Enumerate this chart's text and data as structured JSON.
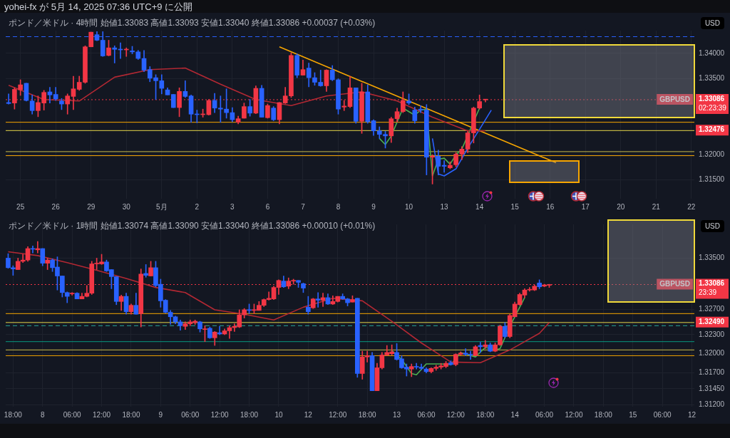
{
  "chart_data": [
    {
      "type": "candlestick",
      "title": "ポンド／米ドル · 4時間  始値1.33083 高値1.33093 安値1.33040 終値1.33086 +0.00037 (+0.03%)",
      "ylabel": "USD",
      "grid": true,
      "annotations": [
        "yohei-fx が 5月 14, 2025 07:36 UTC+9 に公開",
        {
          "text": "GBPUSD",
          "y": 1.33086
        }
      ],
      "categories": [
        null,
        null,
        "25",
        null,
        null,
        null,
        null,
        null,
        "26",
        null,
        null,
        null,
        null,
        null,
        "29",
        null,
        null,
        null,
        null,
        null,
        "30",
        null,
        null,
        null,
        null,
        null,
        "5月",
        null,
        null,
        null,
        null,
        null,
        "2",
        null,
        null,
        null,
        null,
        null,
        "3",
        null,
        null,
        null,
        null,
        null,
        "6",
        null,
        null,
        null,
        null,
        null,
        "7",
        null,
        null,
        null,
        null,
        null,
        "8",
        null,
        null,
        null,
        null,
        null,
        "9",
        null,
        null,
        null,
        null,
        null,
        "10",
        null,
        null,
        null,
        null,
        null,
        "13",
        null,
        null,
        null,
        null,
        null,
        "14",
        null,
        null,
        null,
        null,
        null,
        "15",
        null,
        null,
        null,
        null,
        null,
        "16",
        null,
        null,
        null,
        null,
        null,
        "17",
        null,
        null,
        null,
        null,
        null,
        "20",
        null,
        null,
        null,
        null,
        null,
        "21",
        null,
        null,
        null,
        null,
        null,
        "22"
      ],
      "ylim": [
        1.3113,
        1.3445
      ],
      "yticks": [
        {
          "value": 1.315,
          "label": "1.31500"
        },
        {
          "value": 1.32,
          "label": "1.32000"
        },
        {
          "value": 1.335,
          "label": "1.33500"
        },
        {
          "value": 1.34,
          "label": "1.34000"
        }
      ],
      "ohlc": [
        [
          1.3303,
          1.332,
          1.33,
          1.3301
        ],
        [
          1.3302,
          1.3332,
          1.329,
          1.3329
        ],
        [
          1.3328,
          1.3348,
          1.3317,
          1.3338
        ],
        [
          1.3341,
          1.3341,
          1.3306,
          1.3307
        ],
        [
          1.3306,
          1.3318,
          1.328,
          1.3287
        ],
        [
          1.3287,
          1.3316,
          1.3275,
          1.3303
        ],
        [
          1.3302,
          1.3327,
          1.3288,
          1.3323
        ],
        [
          1.3324,
          1.3333,
          1.3302,
          1.3318
        ],
        [
          1.3319,
          1.3333,
          1.3307,
          1.331
        ],
        [
          1.3306,
          1.3311,
          1.3289,
          1.33
        ],
        [
          1.33,
          1.332,
          1.328,
          1.3316
        ],
        [
          1.3315,
          1.3355,
          1.3289,
          1.333
        ],
        [
          1.3329,
          1.3355,
          1.3327,
          1.3343
        ],
        [
          1.3343,
          1.3415,
          1.3341,
          1.3413
        ],
        [
          1.3413,
          1.3442,
          1.3413,
          1.3442
        ],
        [
          1.3437,
          1.3443,
          1.3425,
          1.3426
        ],
        [
          1.3426,
          1.3443,
          1.3394,
          1.3395
        ],
        [
          1.3396,
          1.3426,
          1.3395,
          1.3411
        ],
        [
          1.3411,
          1.3415,
          1.3381,
          1.3408
        ],
        [
          1.3408,
          1.3421,
          1.339,
          1.3407
        ],
        [
          1.3407,
          1.3411,
          1.3394,
          1.3408
        ],
        [
          1.3405,
          1.3414,
          1.3399,
          1.3403
        ],
        [
          1.3403,
          1.3406,
          1.3388,
          1.339
        ],
        [
          1.339,
          1.3406,
          1.3364,
          1.3367
        ],
        [
          1.3368,
          1.3374,
          1.3344,
          1.3351
        ],
        [
          1.3352,
          1.3358,
          1.3309,
          1.3346
        ],
        [
          1.3346,
          1.3358,
          1.332,
          1.3331
        ],
        [
          1.3328,
          1.3332,
          1.3318,
          1.3318
        ],
        [
          1.3319,
          1.3319,
          1.3293,
          1.3293
        ],
        [
          1.3293,
          1.3332,
          1.3275,
          1.3325
        ],
        [
          1.3325,
          1.3346,
          1.3313,
          1.3315
        ],
        [
          1.3316,
          1.3318,
          1.3264,
          1.328
        ],
        [
          1.328,
          1.3288,
          1.3263,
          1.3279
        ],
        [
          1.3279,
          1.329,
          1.3274,
          1.328
        ],
        [
          1.3279,
          1.3309,
          1.3278,
          1.3307
        ],
        [
          1.3307,
          1.3321,
          1.3283,
          1.3292
        ],
        [
          1.3292,
          1.3316,
          1.3264,
          1.329
        ],
        [
          1.329,
          1.333,
          1.3272,
          1.3283
        ],
        [
          1.3283,
          1.3293,
          1.3265,
          1.3269
        ],
        [
          1.3264,
          1.3276,
          1.3261,
          1.3271
        ],
        [
          1.3272,
          1.3302,
          1.3272,
          1.3295
        ],
        [
          1.3295,
          1.3309,
          1.3276,
          1.3282
        ],
        [
          1.3282,
          1.3336,
          1.3281,
          1.3331
        ],
        [
          1.3331,
          1.3337,
          1.3274,
          1.3274
        ],
        [
          1.3273,
          1.33,
          1.3272,
          1.3297
        ],
        [
          1.3292,
          1.3295,
          1.3267,
          1.3269
        ],
        [
          1.3269,
          1.3303,
          1.3261,
          1.3303
        ],
        [
          1.3302,
          1.3333,
          1.3301,
          1.3316
        ],
        [
          1.3316,
          1.3401,
          1.3313,
          1.3396
        ],
        [
          1.3396,
          1.3399,
          1.3352,
          1.3357
        ],
        [
          1.3357,
          1.3387,
          1.3357,
          1.3368
        ],
        [
          1.3371,
          1.3381,
          1.3334,
          1.3352
        ],
        [
          1.3352,
          1.3362,
          1.3337,
          1.3343
        ],
        [
          1.3343,
          1.3367,
          1.3335,
          1.3336
        ],
        [
          1.3336,
          1.3368,
          1.3325,
          1.3367
        ],
        [
          1.3367,
          1.3376,
          1.3346,
          1.3348
        ],
        [
          1.3348,
          1.335,
          1.328,
          1.329
        ],
        [
          1.3294,
          1.3307,
          1.3287,
          1.3296
        ],
        [
          1.3295,
          1.3355,
          1.3293,
          1.3332
        ],
        [
          1.3332,
          1.3332,
          1.3262,
          1.3266
        ],
        [
          1.3266,
          1.3341,
          1.3242,
          1.3324
        ],
        [
          1.3324,
          1.3338,
          1.3262,
          1.3265
        ],
        [
          1.3267,
          1.3269,
          1.3238,
          1.3247
        ],
        [
          1.3247,
          1.3255,
          1.3232,
          1.324
        ],
        [
          1.324,
          1.3246,
          1.3213,
          1.3237
        ],
        [
          1.3237,
          1.3274,
          1.3224,
          1.3271
        ],
        [
          1.3271,
          1.3292,
          1.3264,
          1.3285
        ],
        [
          1.3285,
          1.3324,
          1.3283,
          1.3307
        ],
        [
          1.3306,
          1.332,
          1.3299,
          1.3302
        ],
        [
          1.3288,
          1.3294,
          1.3262,
          1.3267
        ],
        [
          1.329,
          1.3297,
          1.3283,
          1.3288
        ],
        [
          1.3288,
          1.3299,
          1.316,
          1.3195
        ],
        [
          1.3195,
          1.32,
          1.3142,
          1.3197
        ],
        [
          1.3197,
          1.3209,
          1.316,
          1.3177
        ],
        [
          1.3179,
          1.3188,
          1.3165,
          1.3177
        ],
        [
          1.3174,
          1.3186,
          1.3172,
          1.3179
        ],
        [
          1.318,
          1.3204,
          1.3176,
          1.3201
        ],
        [
          1.3201,
          1.3216,
          1.319,
          1.3211
        ],
        [
          1.3211,
          1.3246,
          1.3204,
          1.3243
        ],
        [
          1.3243,
          1.3294,
          1.3223,
          1.3292
        ],
        [
          1.3292,
          1.3318,
          1.329,
          1.3305
        ],
        [
          1.33083,
          1.33093,
          1.3304,
          1.33086
        ],
        null,
        null,
        null,
        null,
        null,
        null,
        null,
        null,
        null,
        null,
        null,
        null,
        null,
        null,
        null,
        null,
        null,
        null,
        null,
        null,
        null,
        null,
        null,
        null,
        null,
        null,
        null,
        null,
        null,
        null,
        null,
        null,
        null,
        null,
        null
      ],
      "series": [
        {
          "type": "line",
          "color": "#b22833",
          "values": [
            1.3337,
            null,
            null,
            null,
            null,
            null,
            1.3309,
            null,
            null,
            null,
            null,
            null,
            1.3306,
            null,
            null,
            null,
            null,
            null,
            1.3353,
            null,
            null,
            null,
            null,
            null,
            1.3368,
            null,
            null,
            null,
            null,
            null,
            1.3371,
            null,
            null,
            null,
            null,
            null,
            1.3339,
            null,
            null,
            null,
            null,
            null,
            1.3309,
            null,
            null,
            null,
            null,
            null,
            1.3297,
            null,
            null,
            null,
            null,
            null,
            1.3316,
            null,
            null,
            null,
            null,
            null,
            1.3324,
            null,
            null,
            null,
            null,
            null,
            1.3306,
            null,
            null,
            null,
            null,
            null,
            1.3274,
            null,
            null,
            null,
            null,
            null,
            1.3247,
            null,
            null,
            1.3247,
            null,
            null,
            null,
            null,
            null,
            null,
            null,
            null,
            null,
            null,
            null,
            null,
            null,
            null,
            null,
            null,
            null,
            null,
            null,
            null,
            null,
            null,
            null,
            null,
            null,
            null,
            null,
            null,
            null,
            null,
            null,
            null,
            null,
            null,
            null
          ]
        },
        {
          "type": "line",
          "color": "#4caf50",
          "values": [
            null,
            null,
            null,
            null,
            null,
            null,
            null,
            null,
            null,
            null,
            null,
            null,
            null,
            null,
            null,
            null,
            null,
            null,
            null,
            null,
            null,
            null,
            null,
            null,
            null,
            null,
            null,
            null,
            null,
            null,
            null,
            null,
            null,
            null,
            null,
            null,
            null,
            null,
            null,
            null,
            null,
            null,
            null,
            null,
            null,
            null,
            null,
            null,
            null,
            null,
            null,
            null,
            null,
            null,
            null,
            null,
            null,
            null,
            null,
            null,
            null,
            null,
            null,
            1.3232,
            1.322,
            1.3237,
            null,
            1.3292,
            null,
            1.3278,
            1.3288,
            1.329,
            1.3158,
            1.3191,
            1.3193,
            1.3181,
            1.32,
            1.3211,
            null,
            null,
            1.3292,
            null,
            null,
            null,
            null,
            null,
            null,
            null,
            null,
            null,
            null,
            null,
            null,
            null,
            null,
            null,
            null,
            null,
            null,
            null,
            null,
            null,
            null,
            null,
            null,
            null,
            null,
            null,
            null,
            null,
            null,
            null,
            null,
            null,
            null,
            null,
            null
          ]
        },
        {
          "type": "line",
          "color": "#2962ff",
          "values": [
            null,
            null,
            null,
            null,
            null,
            null,
            null,
            null,
            null,
            null,
            null,
            null,
            null,
            null,
            null,
            null,
            null,
            null,
            null,
            null,
            null,
            null,
            null,
            null,
            null,
            null,
            null,
            null,
            null,
            null,
            null,
            null,
            null,
            null,
            null,
            null,
            null,
            null,
            null,
            null,
            null,
            null,
            null,
            null,
            null,
            null,
            null,
            null,
            null,
            null,
            null,
            null,
            null,
            null,
            null,
            null,
            null,
            null,
            null,
            null,
            null,
            null,
            null,
            null,
            null,
            null,
            null,
            null,
            null,
            null,
            null,
            null,
            1.3232,
            1.3162,
            1.3158,
            null,
            1.3172,
            null,
            1.3213,
            null,
            1.325,
            null,
            1.3288,
            null,
            null,
            null,
            null,
            null,
            null,
            null,
            null,
            null,
            null,
            null,
            null,
            null,
            null,
            null,
            null,
            null,
            null,
            null,
            null,
            null,
            null,
            null,
            null,
            null,
            null,
            null,
            null,
            null,
            null,
            null,
            null,
            null,
            null
          ]
        },
        {
          "type": "line",
          "color": "#f7a600",
          "values": [
            null,
            null,
            null,
            null,
            null,
            null,
            null,
            null,
            null,
            null,
            null,
            null,
            null,
            null,
            null,
            null,
            null,
            null,
            null,
            null,
            null,
            null,
            null,
            null,
            null,
            null,
            null,
            null,
            null,
            null,
            null,
            null,
            null,
            null,
            null,
            null,
            null,
            null,
            null,
            null,
            null,
            null,
            null,
            null,
            null,
            null,
            1.3413,
            null,
            null,
            null,
            null,
            null,
            null,
            null,
            null,
            null,
            null,
            null,
            null,
            null,
            null,
            null,
            null,
            null,
            null,
            null,
            null,
            null,
            null,
            null,
            null,
            null,
            null,
            null,
            null,
            null,
            null,
            null,
            null,
            null,
            null,
            null,
            null,
            null,
            null,
            null,
            null,
            null,
            null,
            null,
            null,
            null,
            null,
            1.3184,
            null,
            null,
            null,
            null,
            null,
            null,
            null,
            null,
            null,
            null,
            null,
            null,
            null,
            null,
            null,
            null,
            null,
            null,
            null,
            null,
            null,
            null,
            null
          ]
        }
      ],
      "ref_lines": [
        {
          "axis": "y",
          "value": 1.3433,
          "color": "#2962ff",
          "line_style": "dashed"
        },
        {
          "axis": "y",
          "value": 1.33086,
          "color": "#f23645",
          "line_style": "dotted",
          "label": "1.33086\n02:23:39"
        },
        {
          "axis": "y",
          "value": 1.3264,
          "color": "#f7a600"
        },
        {
          "axis": "y",
          "value": 1.32476,
          "color": "#e5d44a",
          "label": "1.32476"
        },
        {
          "axis": "y",
          "value": 1.3206,
          "color": "#c8b94a"
        },
        {
          "axis": "y",
          "value": 1.3198,
          "color": "#f7a600"
        }
      ]
    },
    {
      "type": "candlestick",
      "title": "ポンド／米ドル · 1時間  始値1.33074 高値1.33090 安値1.33040 終値1.33086 +0.00010 (+0.01%)",
      "ylabel": "USD",
      "grid": true,
      "annotations": [
        {
          "text": "GBPUSD",
          "y": 1.33086
        }
      ],
      "categories": [
        null,
        "18:00",
        null,
        null,
        null,
        null,
        null,
        "8",
        null,
        null,
        null,
        null,
        null,
        "06:00",
        null,
        null,
        null,
        null,
        null,
        "12:00",
        null,
        null,
        null,
        null,
        null,
        "18:00",
        null,
        null,
        null,
        null,
        null,
        "9",
        null,
        null,
        null,
        null,
        null,
        "06:00",
        null,
        null,
        null,
        null,
        null,
        "12:00",
        null,
        null,
        null,
        null,
        null,
        "18:00",
        null,
        null,
        null,
        null,
        null,
        "10",
        null,
        null,
        null,
        null,
        null,
        "12",
        null,
        null,
        null,
        null,
        null,
        "12:00",
        null,
        null,
        null,
        null,
        null,
        "18:00",
        null,
        null,
        null,
        null,
        null,
        "13",
        null,
        null,
        null,
        null,
        null,
        "06:00",
        null,
        null,
        null,
        null,
        null,
        "12:00",
        null,
        null,
        null,
        null,
        null,
        "18:00",
        null,
        null,
        null,
        null,
        null,
        "14",
        null,
        null,
        null,
        null,
        null,
        "06:00",
        null,
        null,
        null,
        null,
        null,
        "12:00",
        null,
        null,
        null,
        null,
        null,
        "18:00",
        null,
        null,
        null,
        null,
        null,
        "15",
        null,
        null,
        null,
        null,
        null,
        "06:00",
        null,
        null,
        null,
        null,
        null,
        "12"
      ],
      "ylim": [
        1.3117,
        1.3403
      ],
      "yticks": [
        {
          "value": 1.312,
          "label": "1.31200"
        },
        {
          "value": 1.3145,
          "label": "1.31450"
        },
        {
          "value": 1.317,
          "label": "1.31700"
        },
        {
          "value": 1.32,
          "label": "1.32000"
        },
        {
          "value": 1.323,
          "label": "1.32300"
        },
        {
          "value": 1.327,
          "label": "1.32700"
        },
        {
          "value": 1.335,
          "label": "1.33500"
        }
      ],
      "ohlc": [
        [
          1.335,
          1.3357,
          1.3334,
          1.3335
        ],
        [
          1.3335,
          1.3338,
          1.3323,
          1.3333
        ],
        [
          1.3332,
          1.335,
          1.3332,
          1.3345
        ],
        [
          1.3345,
          1.3356,
          1.3343,
          1.3347
        ],
        [
          1.3347,
          1.3368,
          1.3345,
          1.3365
        ],
        [
          1.3365,
          1.3369,
          1.3358,
          1.3364
        ],
        [
          1.3363,
          1.3376,
          1.3358,
          1.3365
        ],
        [
          1.3365,
          1.3365,
          1.3338,
          1.3342
        ],
        [
          1.3342,
          1.335,
          1.3332,
          1.3347
        ],
        [
          1.3347,
          1.3349,
          1.3329,
          1.3335
        ],
        [
          1.3336,
          1.3352,
          1.33,
          1.3322
        ],
        [
          1.3322,
          1.3322,
          1.3289,
          1.3296
        ],
        [
          1.3296,
          1.3297,
          1.328,
          1.329
        ],
        [
          1.3294,
          1.3296,
          1.3292,
          1.3295
        ],
        [
          1.3295,
          1.3296,
          1.3286,
          1.3286
        ],
        [
          1.3286,
          1.3295,
          1.3286,
          1.329
        ],
        [
          1.329,
          1.3307,
          1.3289,
          1.3295
        ],
        [
          1.3295,
          1.3345,
          1.3293,
          1.3341
        ],
        [
          1.3341,
          1.335,
          1.3332,
          1.3342
        ],
        [
          1.3341,
          1.3356,
          1.334,
          1.3344
        ],
        [
          1.3344,
          1.3347,
          1.3329,
          1.333
        ],
        [
          1.3332,
          1.3332,
          1.3302,
          1.3321
        ],
        [
          1.3321,
          1.3321,
          1.3277,
          1.3282
        ],
        [
          1.3282,
          1.3292,
          1.3268,
          1.329
        ],
        [
          1.329,
          1.3295,
          1.3262,
          1.3266
        ],
        [
          1.3266,
          1.3278,
          1.3262,
          1.3276
        ],
        [
          1.3276,
          1.3295,
          1.3262,
          1.3262
        ],
        [
          1.3263,
          1.3333,
          1.3242,
          1.3325
        ],
        [
          1.3326,
          1.334,
          1.332,
          1.3323
        ],
        [
          1.3322,
          1.3345,
          1.3322,
          1.3335
        ],
        [
          1.3335,
          1.3345,
          1.3305,
          1.3307
        ],
        [
          1.3309,
          1.3317,
          1.3273,
          1.3283
        ],
        [
          1.3284,
          1.3285,
          1.3264,
          1.3265
        ],
        [
          1.3265,
          1.3268,
          1.3246,
          1.3258
        ],
        [
          1.3258,
          1.3259,
          1.3247,
          1.325
        ],
        [
          1.325,
          1.3253,
          1.3237,
          1.3244
        ],
        [
          1.3243,
          1.325,
          1.3238,
          1.3247
        ],
        [
          1.3247,
          1.3253,
          1.3244,
          1.325
        ],
        [
          1.3249,
          1.3253,
          1.3246,
          1.3251
        ],
        [
          1.325,
          1.3251,
          1.3234,
          1.3239
        ],
        [
          1.3238,
          1.3244,
          1.3219,
          1.3239
        ],
        [
          1.324,
          1.3242,
          1.3224,
          1.3225
        ],
        [
          1.3225,
          1.3235,
          1.3213,
          1.3234
        ],
        [
          1.3233,
          1.3243,
          1.323,
          1.3231
        ],
        [
          1.3231,
          1.3239,
          1.323,
          1.3236
        ],
        [
          1.3236,
          1.3244,
          1.3224,
          1.3241
        ],
        [
          1.3241,
          1.3247,
          1.3235,
          1.3243
        ],
        [
          1.3242,
          1.3269,
          1.3241,
          1.3261
        ],
        [
          1.3261,
          1.3271,
          1.3256,
          1.3269
        ],
        [
          1.3269,
          1.3278,
          1.3263,
          1.3268
        ],
        [
          1.3268,
          1.3278,
          1.3263,
          1.3269
        ],
        [
          1.3268,
          1.3282,
          1.3268,
          1.3276
        ],
        [
          1.3276,
          1.3286,
          1.3274,
          1.3285
        ],
        [
          1.3285,
          1.3297,
          1.3284,
          1.3287
        ],
        [
          1.3286,
          1.3306,
          1.3285,
          1.3304
        ],
        [
          1.3304,
          1.3316,
          1.3293,
          1.3315
        ],
        [
          1.3314,
          1.3322,
          1.3304,
          1.3305
        ],
        [
          1.3306,
          1.3319,
          1.3302,
          1.3314
        ],
        [
          1.3314,
          1.3317,
          1.3309,
          1.3315
        ],
        [
          1.3315,
          1.3315,
          1.3304,
          1.3312
        ],
        [
          1.331,
          1.3311,
          1.3296,
          1.3303
        ],
        [
          1.3273,
          1.329,
          1.3262,
          1.3266
        ],
        [
          1.3272,
          1.3287,
          1.3271,
          1.3286
        ],
        [
          1.3286,
          1.3296,
          1.3273,
          1.3284
        ],
        [
          1.3284,
          1.3295,
          1.3274,
          1.3288
        ],
        [
          1.3288,
          1.3294,
          1.3277,
          1.3278
        ],
        [
          1.3278,
          1.3291,
          1.3277,
          1.3282
        ],
        [
          1.3282,
          1.329,
          1.3281,
          1.329
        ],
        [
          1.329,
          1.3294,
          1.3285,
          1.3286
        ],
        [
          1.3286,
          1.3287,
          1.3275,
          1.328
        ],
        [
          1.3281,
          1.3291,
          1.3281,
          1.3285
        ],
        [
          1.3287,
          1.3287,
          1.3163,
          1.3169
        ],
        [
          1.3169,
          1.3204,
          1.316,
          1.3195
        ],
        [
          1.3195,
          1.3204,
          1.3187,
          1.3197
        ],
        [
          1.3197,
          1.3202,
          1.3142,
          1.3142
        ],
        [
          1.3142,
          1.3185,
          1.3142,
          1.3178
        ],
        [
          1.3178,
          1.3202,
          1.3176,
          1.3198
        ],
        [
          1.3198,
          1.3213,
          1.3197,
          1.3202
        ],
        [
          1.32,
          1.3214,
          1.3198,
          1.3203
        ],
        [
          1.3202,
          1.3216,
          1.319,
          1.3191
        ],
        [
          1.3192,
          1.3197,
          1.3177,
          1.3178
        ],
        [
          1.3179,
          1.3184,
          1.3165,
          1.3176
        ],
        [
          1.3176,
          1.3184,
          1.3164,
          1.318
        ],
        [
          1.318,
          1.3185,
          1.3176,
          1.3179
        ],
        [
          1.3179,
          1.3184,
          1.3175,
          1.3177
        ],
        [
          1.3176,
          1.3178,
          1.317,
          1.3172
        ],
        [
          1.3172,
          1.3178,
          1.317,
          1.3177
        ],
        [
          1.3177,
          1.3182,
          1.3174,
          1.3179
        ],
        [
          1.3179,
          1.3185,
          1.3176,
          1.3181
        ],
        [
          1.318,
          1.3188,
          1.3178,
          1.3185
        ],
        [
          1.3186,
          1.3189,
          1.3182,
          1.3183
        ],
        [
          1.3183,
          1.32,
          1.3181,
          1.3199
        ],
        [
          1.3199,
          1.3203,
          1.3198,
          1.3201
        ],
        [
          1.3201,
          1.3208,
          1.3197,
          1.3199
        ],
        [
          1.3199,
          1.3204,
          1.3191,
          1.3198
        ],
        [
          1.3197,
          1.3213,
          1.3197,
          1.3211
        ],
        [
          1.3213,
          1.3218,
          1.3202,
          1.3211
        ],
        [
          1.3211,
          1.3221,
          1.3208,
          1.3214
        ],
        [
          1.3214,
          1.3217,
          1.3203,
          1.3204
        ],
        [
          1.3204,
          1.3217,
          1.3203,
          1.3214
        ],
        [
          1.3214,
          1.3245,
          1.3213,
          1.3243
        ],
        [
          1.3243,
          1.3249,
          1.3225,
          1.3227
        ],
        [
          1.3227,
          1.3262,
          1.3225,
          1.326
        ],
        [
          1.3258,
          1.3281,
          1.3258,
          1.3278
        ],
        [
          1.3277,
          1.3295,
          1.3276,
          1.3293
        ],
        [
          1.3292,
          1.3302,
          1.3288,
          1.33
        ],
        [
          1.33,
          1.3304,
          1.3298,
          1.3301
        ],
        [
          1.33,
          1.3308,
          1.3299,
          1.3306
        ],
        [
          1.3311,
          1.3316,
          1.3302,
          1.3305
        ],
        [
          1.3306,
          1.3309,
          1.3305,
          1.3308
        ],
        [
          1.33074,
          1.3309,
          1.3304,
          1.33086
        ],
        null,
        null,
        null,
        null,
        null,
        null,
        null,
        null,
        null,
        null,
        null,
        null,
        null,
        null,
        null,
        null,
        null,
        null,
        null,
        null,
        null,
        null,
        null,
        null,
        null,
        null,
        null,
        null,
        null
      ],
      "series": [
        {
          "type": "line",
          "color": "#b22833",
          "values": [
            1.336,
            null,
            null,
            null,
            null,
            null,
            1.3354,
            null,
            null,
            null,
            null,
            null,
            1.3343,
            null,
            null,
            null,
            null,
            null,
            1.3331,
            null,
            null,
            null,
            null,
            null,
            1.3318,
            null,
            null,
            null,
            null,
            null,
            1.3304,
            null,
            null,
            null,
            null,
            null,
            1.3296,
            null,
            null,
            null,
            null,
            null,
            1.3269,
            null,
            null,
            null,
            null,
            null,
            1.3262,
            null,
            null,
            null,
            null,
            null,
            1.3253,
            null,
            null,
            null,
            null,
            null,
            1.3273,
            null,
            null,
            null,
            null,
            null,
            1.3287,
            null,
            null,
            null,
            null,
            null,
            1.3283,
            null,
            null,
            null,
            null,
            null,
            1.3251,
            null,
            null,
            null,
            null,
            null,
            1.3217,
            null,
            null,
            null,
            null,
            null,
            1.3187,
            null,
            null,
            null,
            null,
            null,
            1.3186,
            null,
            null,
            null,
            null,
            null,
            1.3206,
            null,
            null,
            null,
            null,
            null,
            1.3232,
            null,
            1.3249,
            null,
            null,
            null,
            null,
            null,
            null,
            null,
            null,
            null,
            null,
            null,
            null,
            null,
            null,
            null,
            null,
            null,
            null,
            null,
            null,
            null,
            null,
            null,
            null,
            null,
            null,
            null,
            null,
            null
          ]
        },
        {
          "type": "line",
          "color": "#4caf50",
          "values": [
            null,
            null,
            null,
            null,
            null,
            null,
            null,
            null,
            null,
            null,
            null,
            null,
            null,
            null,
            null,
            null,
            null,
            null,
            null,
            null,
            null,
            null,
            null,
            null,
            null,
            null,
            null,
            null,
            null,
            null,
            null,
            null,
            null,
            null,
            null,
            null,
            null,
            null,
            null,
            null,
            null,
            null,
            null,
            null,
            null,
            null,
            null,
            null,
            null,
            null,
            null,
            null,
            null,
            null,
            null,
            null,
            null,
            null,
            null,
            null,
            null,
            null,
            null,
            null,
            null,
            null,
            null,
            null,
            null,
            null,
            null,
            null,
            null,
            null,
            null,
            null,
            null,
            null,
            1.3205,
            null,
            1.3191,
            null,
            1.3169,
            1.3167,
            null,
            1.3184,
            null,
            null,
            1.3184,
            null,
            1.3183,
            null,
            1.3202,
            null,
            null,
            1.3195,
            null,
            1.321,
            null,
            1.3206,
            1.3208,
            null,
            1.3243,
            null,
            null,
            1.3288,
            null,
            null,
            null,
            null,
            null,
            null,
            null,
            null,
            null,
            null,
            null,
            null,
            null,
            null,
            null,
            null,
            null,
            null,
            null,
            null,
            null,
            null,
            null,
            null,
            null,
            null,
            null,
            null,
            null,
            null,
            null,
            null,
            null,
            null
          ]
        }
      ],
      "ref_lines": [
        {
          "axis": "y",
          "value": 1.33086,
          "color": "#f23645",
          "line_style": "dotted",
          "label": "1.33086\n23:39"
        },
        {
          "axis": "y",
          "value": 1.3263,
          "color": "#f7a600"
        },
        {
          "axis": "y",
          "value": 1.3249,
          "color": "#e5d44a",
          "label": "1.32490"
        },
        {
          "axis": "y",
          "value": 1.3244,
          "color": "#26a69a",
          "line_style": "dashed"
        },
        {
          "axis": "y",
          "value": 1.3219,
          "color": "#089981"
        },
        {
          "axis": "y",
          "value": 1.3206,
          "color": "#c8b94a"
        },
        {
          "axis": "y",
          "value": 1.3197,
          "color": "#f7a600"
        }
      ]
    }
  ]
}
